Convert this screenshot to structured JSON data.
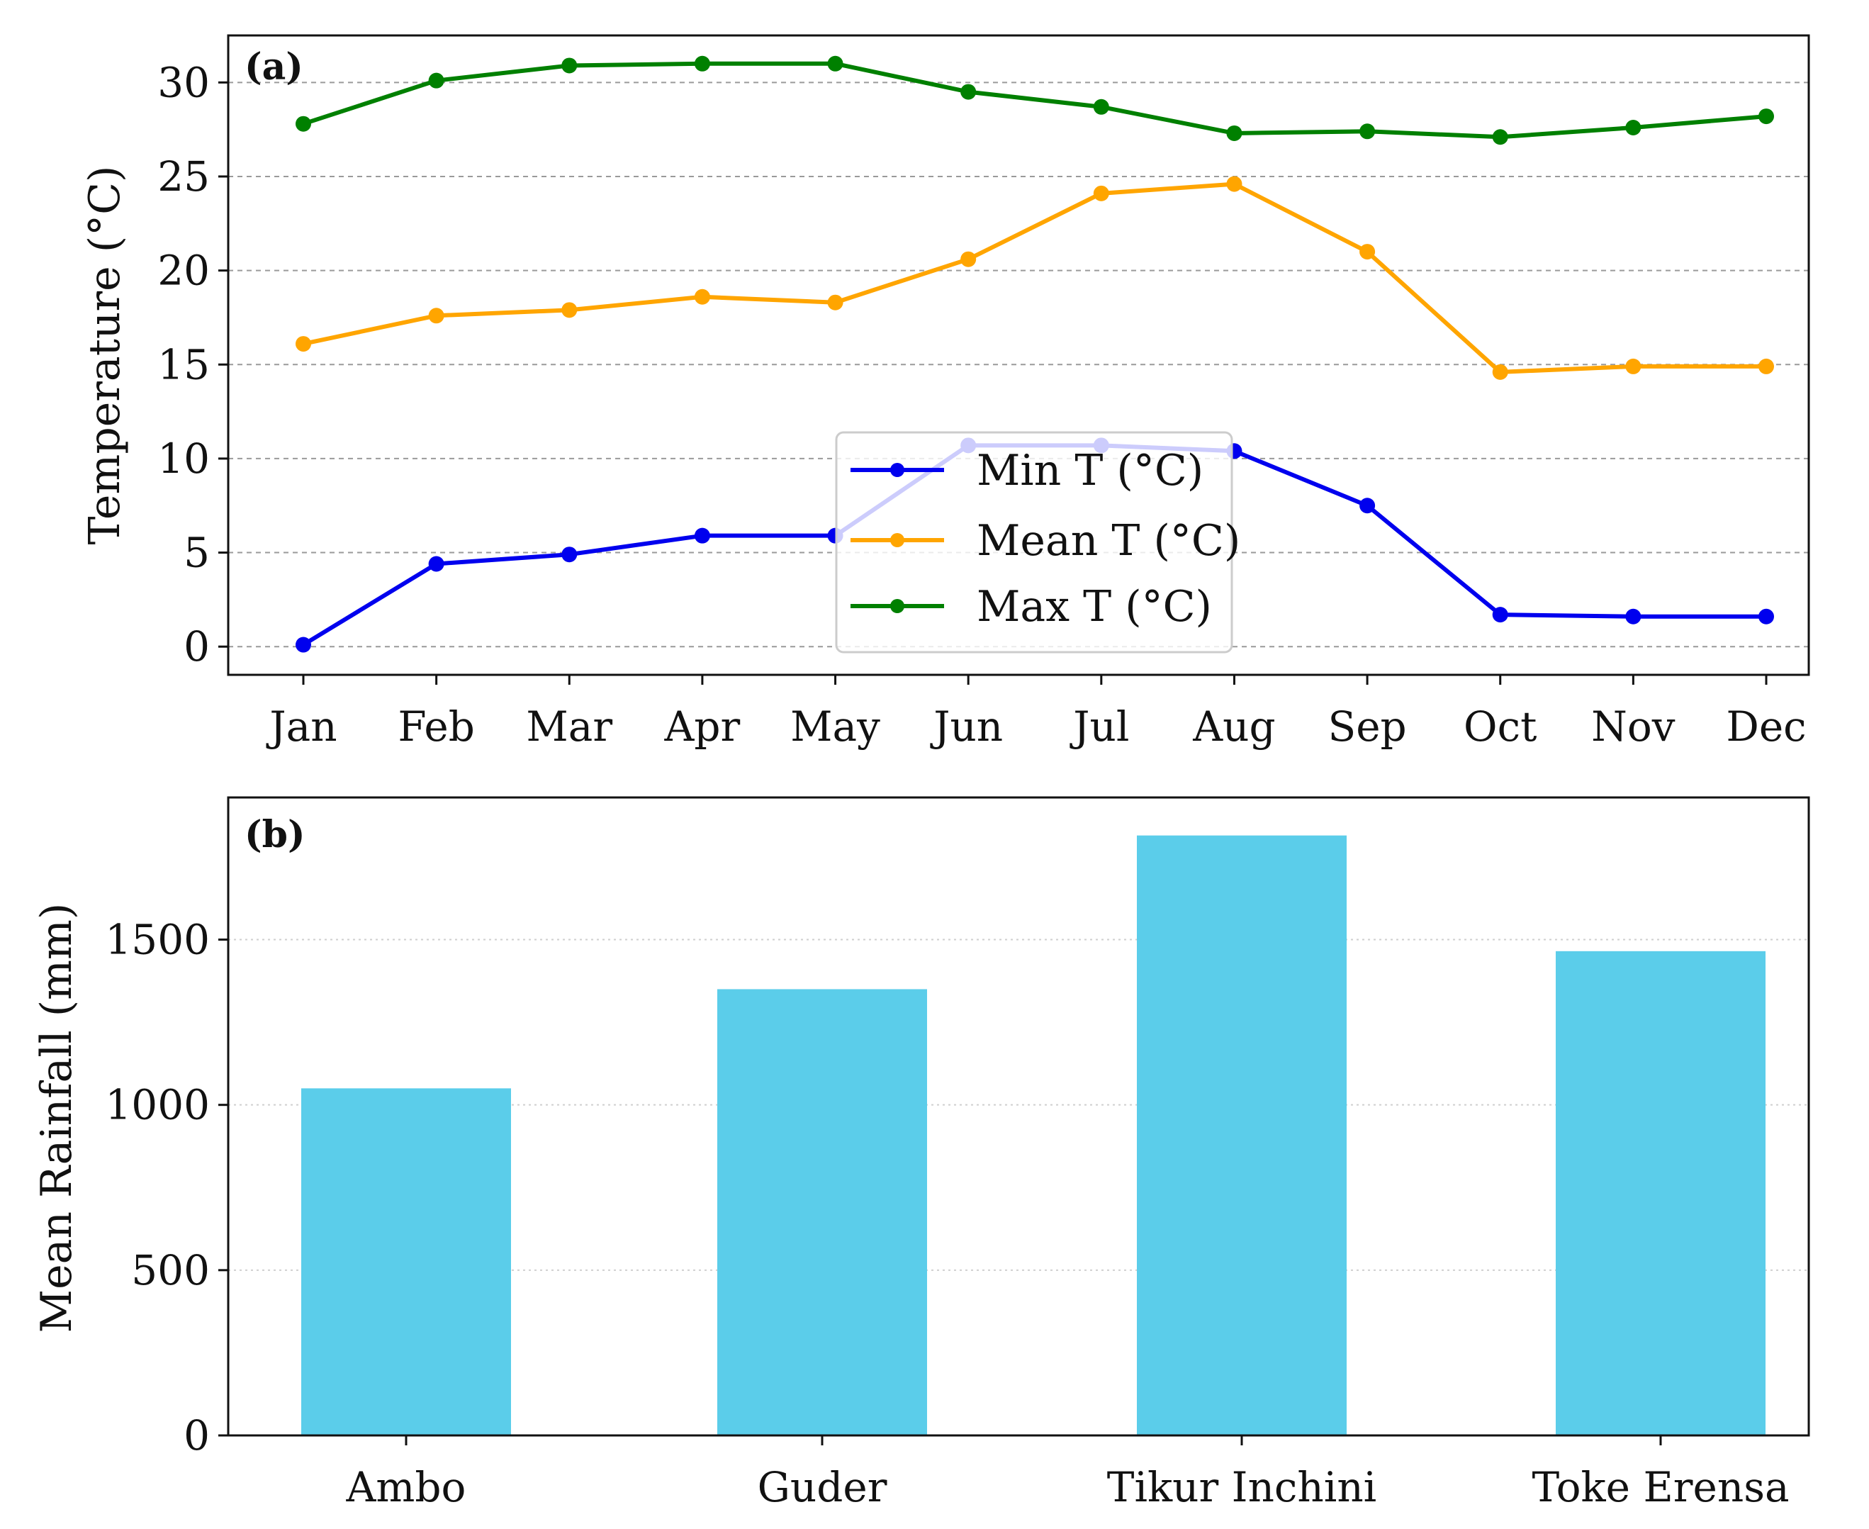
{
  "chart_data": [
    {
      "type": "line",
      "panel_label": "(a)",
      "ylabel": "Temperature (°C)",
      "xlabel": "",
      "ylim": [
        -1.5,
        32.5
      ],
      "yticks": [
        0,
        5,
        10,
        15,
        20,
        25,
        30
      ],
      "grid": "horizontal dashed",
      "legend_position": "center-bottom",
      "categories": [
        "Jan",
        "Feb",
        "Mar",
        "Apr",
        "May",
        "Jun",
        "Jul",
        "Aug",
        "Sep",
        "Oct",
        "Nov",
        "Dec"
      ],
      "series": [
        {
          "name": "Min T (°C)",
          "color": "#0000ee",
          "values": [
            0.1,
            4.4,
            4.9,
            5.9,
            5.9,
            10.7,
            10.7,
            10.4,
            7.5,
            1.7,
            1.6,
            1.6
          ]
        },
        {
          "name": "Mean T (°C)",
          "color": "#ffa500",
          "values": [
            16.1,
            17.6,
            17.9,
            18.6,
            18.3,
            20.6,
            24.1,
            24.6,
            21.0,
            14.6,
            14.9,
            14.9
          ]
        },
        {
          "name": "Max T (°C)",
          "color": "#008000",
          "values": [
            27.8,
            30.1,
            30.9,
            31.0,
            31.0,
            29.5,
            28.7,
            27.3,
            27.4,
            27.1,
            27.6,
            28.2
          ]
        }
      ]
    },
    {
      "type": "bar",
      "panel_label": "(b)",
      "ylabel": "Mean Rainfall (mm)",
      "xlabel": "",
      "ylim": [
        0,
        1930
      ],
      "yticks": [
        0,
        500,
        1000,
        1500
      ],
      "grid": "horizontal dotted",
      "bar_color": "#5bcdea",
      "categories": [
        "Ambo",
        "Guder",
        "Tikur Inchini",
        "Toke Erensa"
      ],
      "values": [
        1050,
        1350,
        1815,
        1465
      ]
    }
  ]
}
